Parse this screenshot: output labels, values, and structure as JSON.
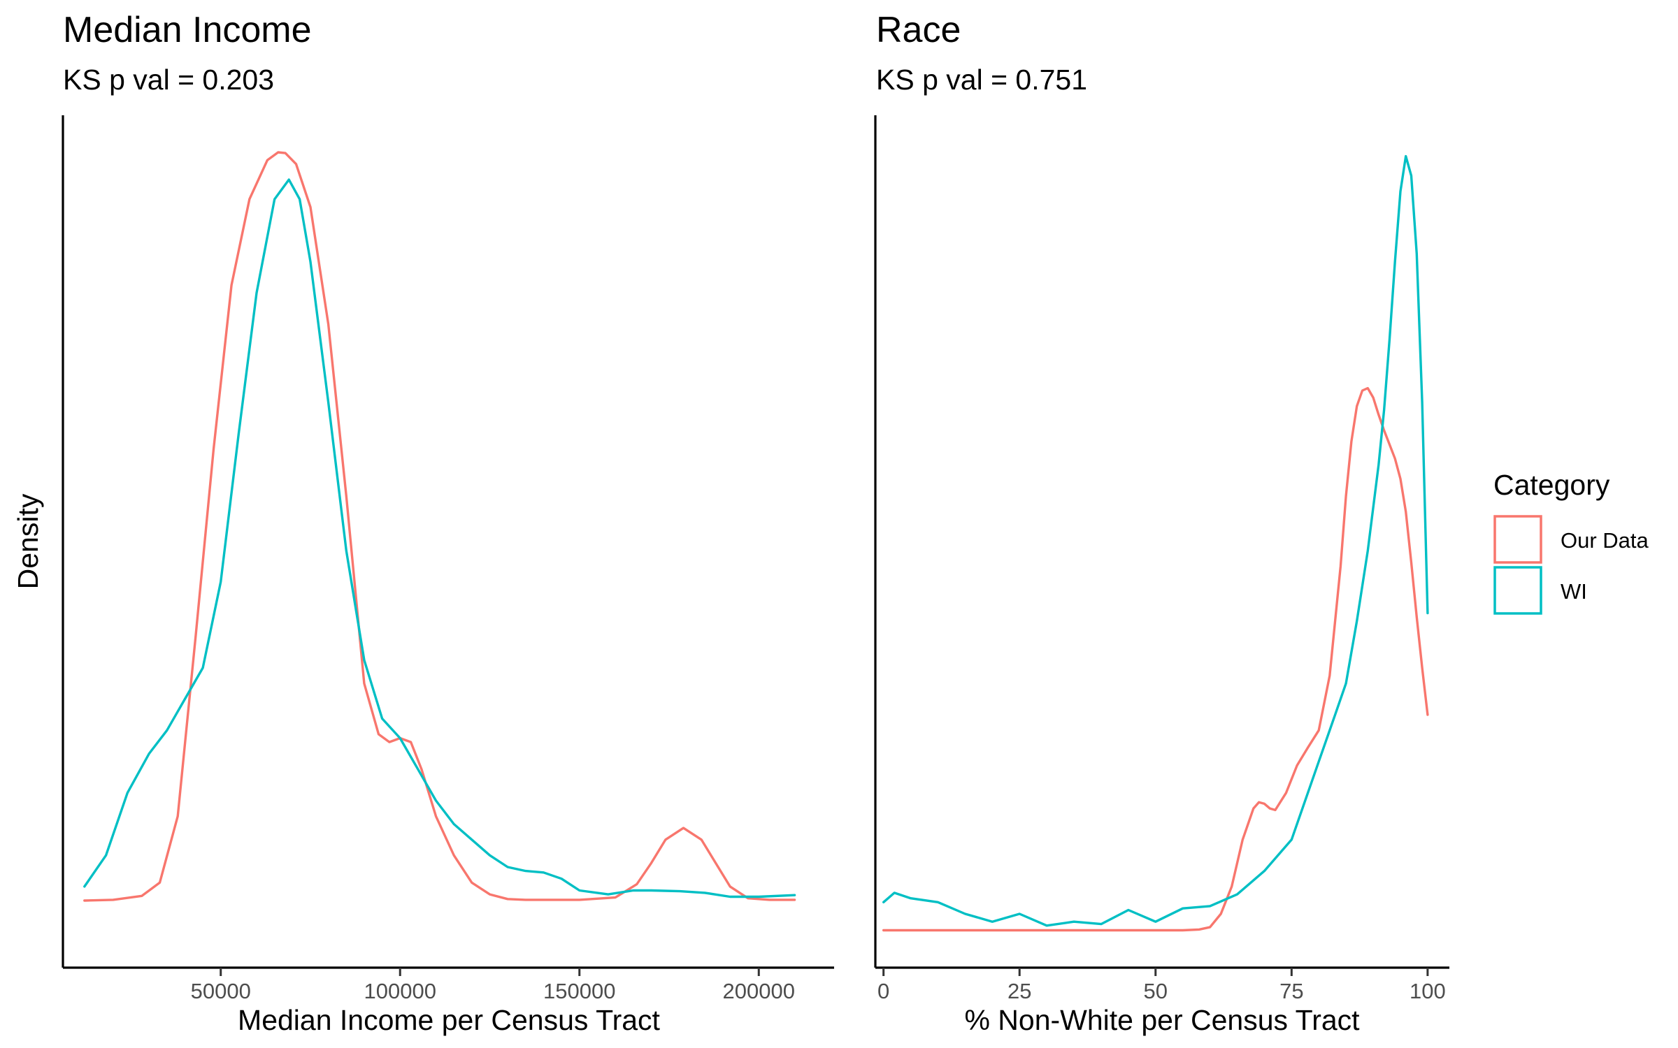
{
  "colors": {
    "our_data": "#F8766D",
    "wi": "#00BFC4",
    "axis": "#000000",
    "tick_text": "#4d4d4d"
  },
  "y_axis_title": "Density",
  "legend": {
    "title": "Category",
    "items": [
      {
        "key": "our_data",
        "label": "Our Data"
      },
      {
        "key": "wi",
        "label": "WI"
      }
    ],
    "placement": "right"
  },
  "chart_data": [
    {
      "type": "line",
      "title": "Median Income",
      "subtitle": "KS p val = 0.203",
      "xlabel": "Median Income per Census Tract",
      "ylabel": "Density",
      "xlim": [
        6000,
        221000
      ],
      "ylim": [
        0,
        1.0
      ],
      "xticks": [
        50000,
        100000,
        150000,
        200000
      ],
      "xtick_labels": [
        "50000",
        "100000",
        "150000",
        "200000"
      ],
      "y_tick_labels_shown": false,
      "grid": false,
      "series": [
        {
          "name": "Our Data",
          "color_key": "our_data",
          "x": [
            12000,
            20000,
            28000,
            33000,
            38000,
            43000,
            48000,
            53000,
            58000,
            63000,
            66000,
            68000,
            71000,
            75000,
            80000,
            85000,
            90000,
            94000,
            97000,
            100000,
            103000,
            106000,
            110000,
            115000,
            120000,
            125000,
            130000,
            135000,
            140000,
            150000,
            160000,
            166000,
            170000,
            174000,
            179000,
            184000,
            188000,
            192000,
            197000,
            203000,
            210000
          ],
          "y": [
            0.042,
            0.043,
            0.048,
            0.065,
            0.15,
            0.38,
            0.62,
            0.83,
            0.94,
            0.99,
            1.0,
            0.999,
            0.985,
            0.93,
            0.78,
            0.56,
            0.32,
            0.255,
            0.245,
            0.25,
            0.245,
            0.21,
            0.15,
            0.1,
            0.065,
            0.05,
            0.044,
            0.043,
            0.043,
            0.043,
            0.046,
            0.063,
            0.09,
            0.12,
            0.135,
            0.12,
            0.09,
            0.06,
            0.045,
            0.043,
            0.043
          ]
        },
        {
          "name": "WI",
          "color_key": "wi",
          "x": [
            12000,
            18000,
            24000,
            30000,
            35000,
            40000,
            45000,
            50000,
            55000,
            60000,
            65000,
            69000,
            72000,
            75000,
            80000,
            85000,
            90000,
            95000,
            100000,
            105000,
            110000,
            115000,
            120000,
            125000,
            130000,
            135000,
            140000,
            145000,
            150000,
            158000,
            165000,
            170000,
            178000,
            185000,
            192000,
            200000,
            210000
          ],
          "y": [
            0.06,
            0.1,
            0.18,
            0.23,
            0.26,
            0.3,
            0.34,
            0.45,
            0.64,
            0.82,
            0.94,
            0.965,
            0.94,
            0.86,
            0.68,
            0.49,
            0.35,
            0.275,
            0.25,
            0.21,
            0.17,
            0.14,
            0.12,
            0.1,
            0.085,
            0.08,
            0.078,
            0.07,
            0.055,
            0.05,
            0.055,
            0.055,
            0.054,
            0.052,
            0.047,
            0.047,
            0.049
          ]
        }
      ]
    },
    {
      "type": "line",
      "title": "Race",
      "subtitle": "KS p val = 0.751",
      "xlabel": "% Non-White per Census Tract",
      "ylabel": "Density",
      "xlim": [
        -1.5,
        104
      ],
      "ylim": [
        0,
        1.0
      ],
      "xticks": [
        0,
        25,
        50,
        75,
        100
      ],
      "xtick_labels": [
        "0",
        "25",
        "50",
        "75",
        "100"
      ],
      "y_tick_labels_shown": false,
      "grid": false,
      "series": [
        {
          "name": "Our Data",
          "color_key": "our_data",
          "x": [
            0,
            20,
            40,
            55,
            58,
            60,
            62,
            64,
            66,
            68,
            69,
            70,
            71,
            72,
            74,
            76,
            78,
            80,
            82,
            84,
            85,
            86,
            87,
            88,
            89,
            90,
            91,
            92,
            93,
            94,
            95,
            96,
            97,
            98,
            99,
            100
          ],
          "y": [
            0.004,
            0.004,
            0.004,
            0.004,
            0.005,
            0.008,
            0.025,
            0.06,
            0.12,
            0.16,
            0.168,
            0.166,
            0.16,
            0.158,
            0.18,
            0.215,
            0.238,
            0.26,
            0.33,
            0.47,
            0.56,
            0.63,
            0.675,
            0.695,
            0.698,
            0.686,
            0.664,
            0.644,
            0.626,
            0.608,
            0.582,
            0.54,
            0.475,
            0.405,
            0.34,
            0.28
          ]
        },
        {
          "name": "WI",
          "color_key": "wi",
          "x": [
            0,
            2,
            5,
            10,
            15,
            20,
            25,
            30,
            35,
            40,
            45,
            50,
            55,
            60,
            65,
            70,
            75,
            80,
            83,
            85,
            87,
            89,
            91,
            92,
            93,
            94,
            95,
            96,
            97,
            98,
            99,
            100
          ],
          "y": [
            0.04,
            0.052,
            0.045,
            0.04,
            0.025,
            0.015,
            0.025,
            0.01,
            0.015,
            0.012,
            0.03,
            0.015,
            0.032,
            0.035,
            0.05,
            0.08,
            0.12,
            0.22,
            0.28,
            0.32,
            0.4,
            0.49,
            0.6,
            0.67,
            0.76,
            0.86,
            0.95,
            0.995,
            0.97,
            0.87,
            0.68,
            0.41
          ]
        }
      ]
    }
  ]
}
